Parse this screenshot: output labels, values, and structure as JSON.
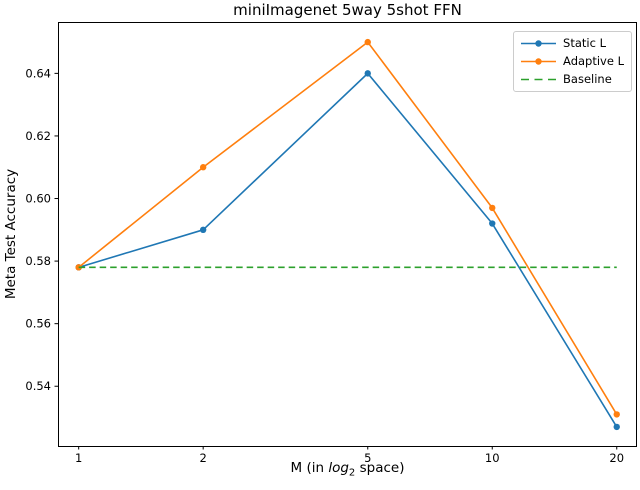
{
  "chart_data": {
    "type": "line",
    "title": "miniImagenet 5way 5shot FFN",
    "ylabel": "Meta Test Accuracy",
    "xlabel": {
      "prefix": "M (in ",
      "italic": "log",
      "sub": "2",
      "suffix": " space)"
    },
    "x_scale": "log",
    "x": [
      1,
      2,
      5,
      10,
      20
    ],
    "series": [
      {
        "name": "Static L",
        "color": "#1f77b4",
        "style": "solid",
        "marker": "circle",
        "values": [
          0.578,
          0.59,
          0.64,
          0.592,
          0.527
        ]
      },
      {
        "name": "Adaptive L",
        "color": "#ff7f0e",
        "style": "solid",
        "marker": "circle",
        "values": [
          0.578,
          0.61,
          0.65,
          0.597,
          0.531
        ]
      },
      {
        "name": "Baseline",
        "color": "#2ca02c",
        "style": "dashed",
        "marker": "none",
        "values": [
          0.578,
          0.578,
          0.578,
          0.578,
          0.578
        ]
      }
    ],
    "xticks": {
      "values": [
        1,
        2,
        5,
        10,
        20
      ],
      "labels": [
        "1",
        "2",
        "5",
        "10",
        "20"
      ]
    },
    "yticks": {
      "values": [
        0.54,
        0.56,
        0.58,
        0.6,
        0.62,
        0.64
      ],
      "labels": [
        "0.54",
        "0.56",
        "0.58",
        "0.60",
        "0.62",
        "0.64"
      ]
    },
    "xlim": [
      0.8913,
      22.387
    ],
    "ylim": [
      0.5209,
      0.6561
    ],
    "grid": false,
    "legend_position": "upper right"
  },
  "colors": {
    "spine": "#000000",
    "text": "#000000",
    "legend_border": "#cccccc",
    "background": "#ffffff"
  }
}
